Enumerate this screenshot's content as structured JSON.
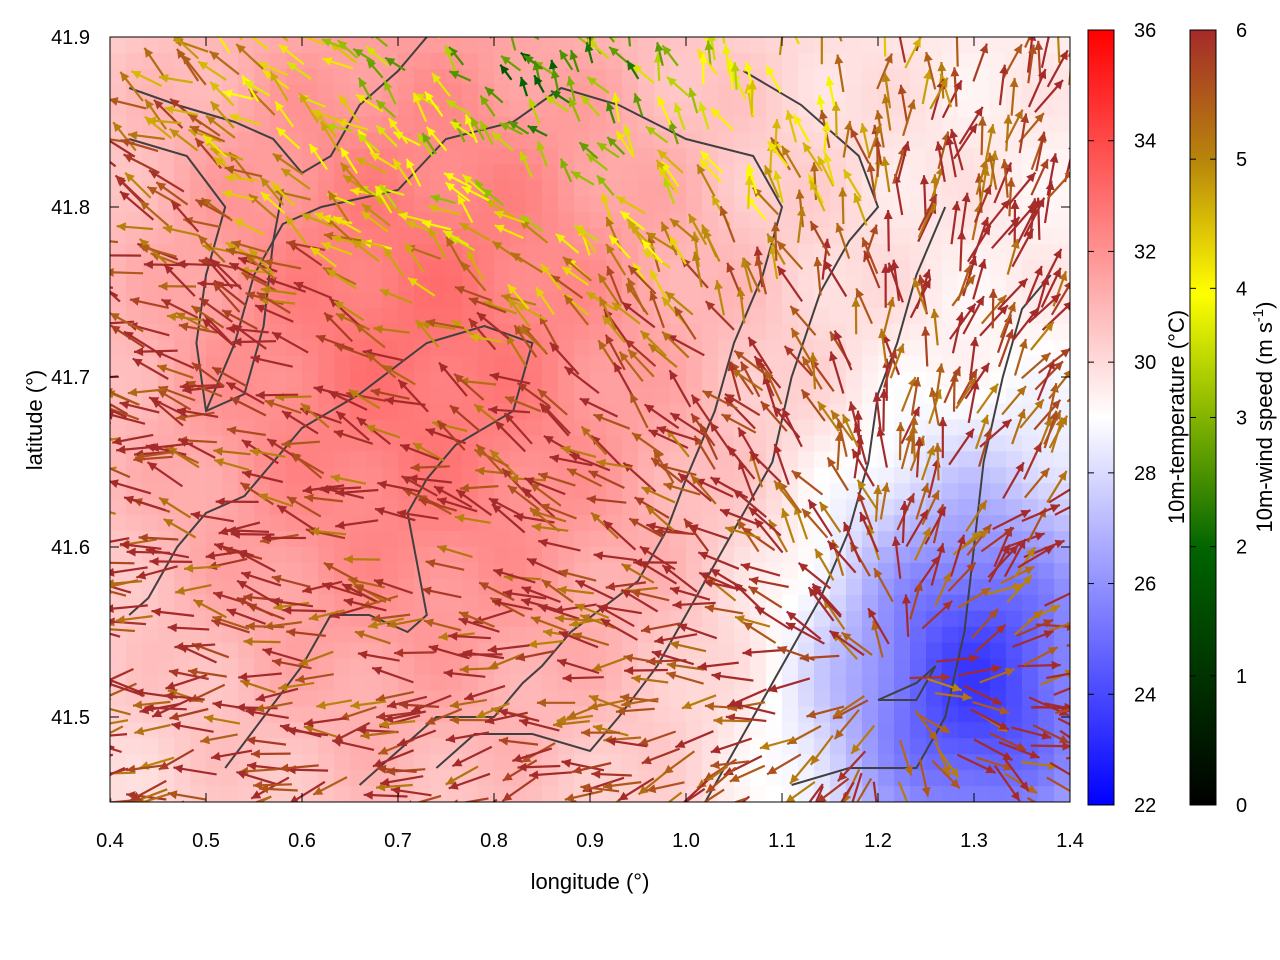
{
  "chart_data": {
    "type": "heatmap",
    "title": "",
    "xlabel": "longitude (°)",
    "ylabel": "latitude (°)",
    "xlim": [
      0.4,
      1.4
    ],
    "ylim": [
      41.45,
      41.9
    ],
    "xticks": [
      "0.4",
      "0.5",
      "0.6",
      "0.7",
      "0.8",
      "0.9",
      "1.0",
      "1.1",
      "1.2",
      "1.3",
      "1.4"
    ],
    "yticks": [
      "41.5",
      "41.6",
      "41.7",
      "41.8",
      "41.9"
    ],
    "temperature": {
      "label": "10m-temperature (°C)",
      "range": [
        22,
        36
      ],
      "ticks": [
        "22",
        "24",
        "26",
        "28",
        "30",
        "32",
        "34",
        "36"
      ],
      "colors": [
        "#0000ff",
        "#ffffff",
        "#ff0000"
      ],
      "hot_center": [
        0.72,
        41.72
      ],
      "cool_center": [
        1.3,
        41.52
      ]
    },
    "wind": {
      "label": "10m-wind speed (m s-1)",
      "unit_sup": "-1",
      "range": [
        0,
        6
      ],
      "ticks": [
        "0",
        "1",
        "2",
        "3",
        "4",
        "5",
        "6"
      ],
      "colors": [
        "#000000",
        "#006400",
        "#ffff00",
        "#b8860b",
        "#a52a2a"
      ],
      "divergence_center": [
        1.22,
        41.52
      ]
    },
    "contour_color": "#404040"
  }
}
